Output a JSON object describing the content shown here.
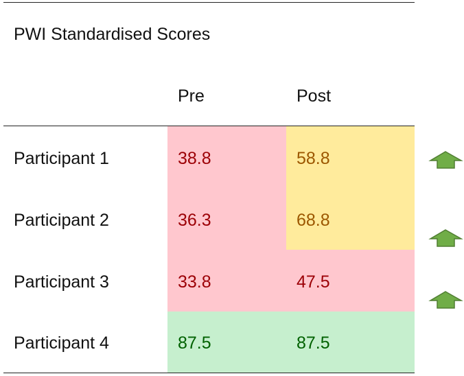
{
  "table": {
    "title": "PWI Standardised Scores",
    "columns": [
      "Pre",
      "Post"
    ],
    "rows": [
      [
        "Participant 1",
        38.8,
        58.8
      ],
      [
        "Participant 2",
        36.3,
        68.8
      ],
      [
        "Participant 3",
        33.8,
        47.5
      ],
      [
        "Participant 4",
        87.5,
        87.5
      ]
    ]
  }
}
